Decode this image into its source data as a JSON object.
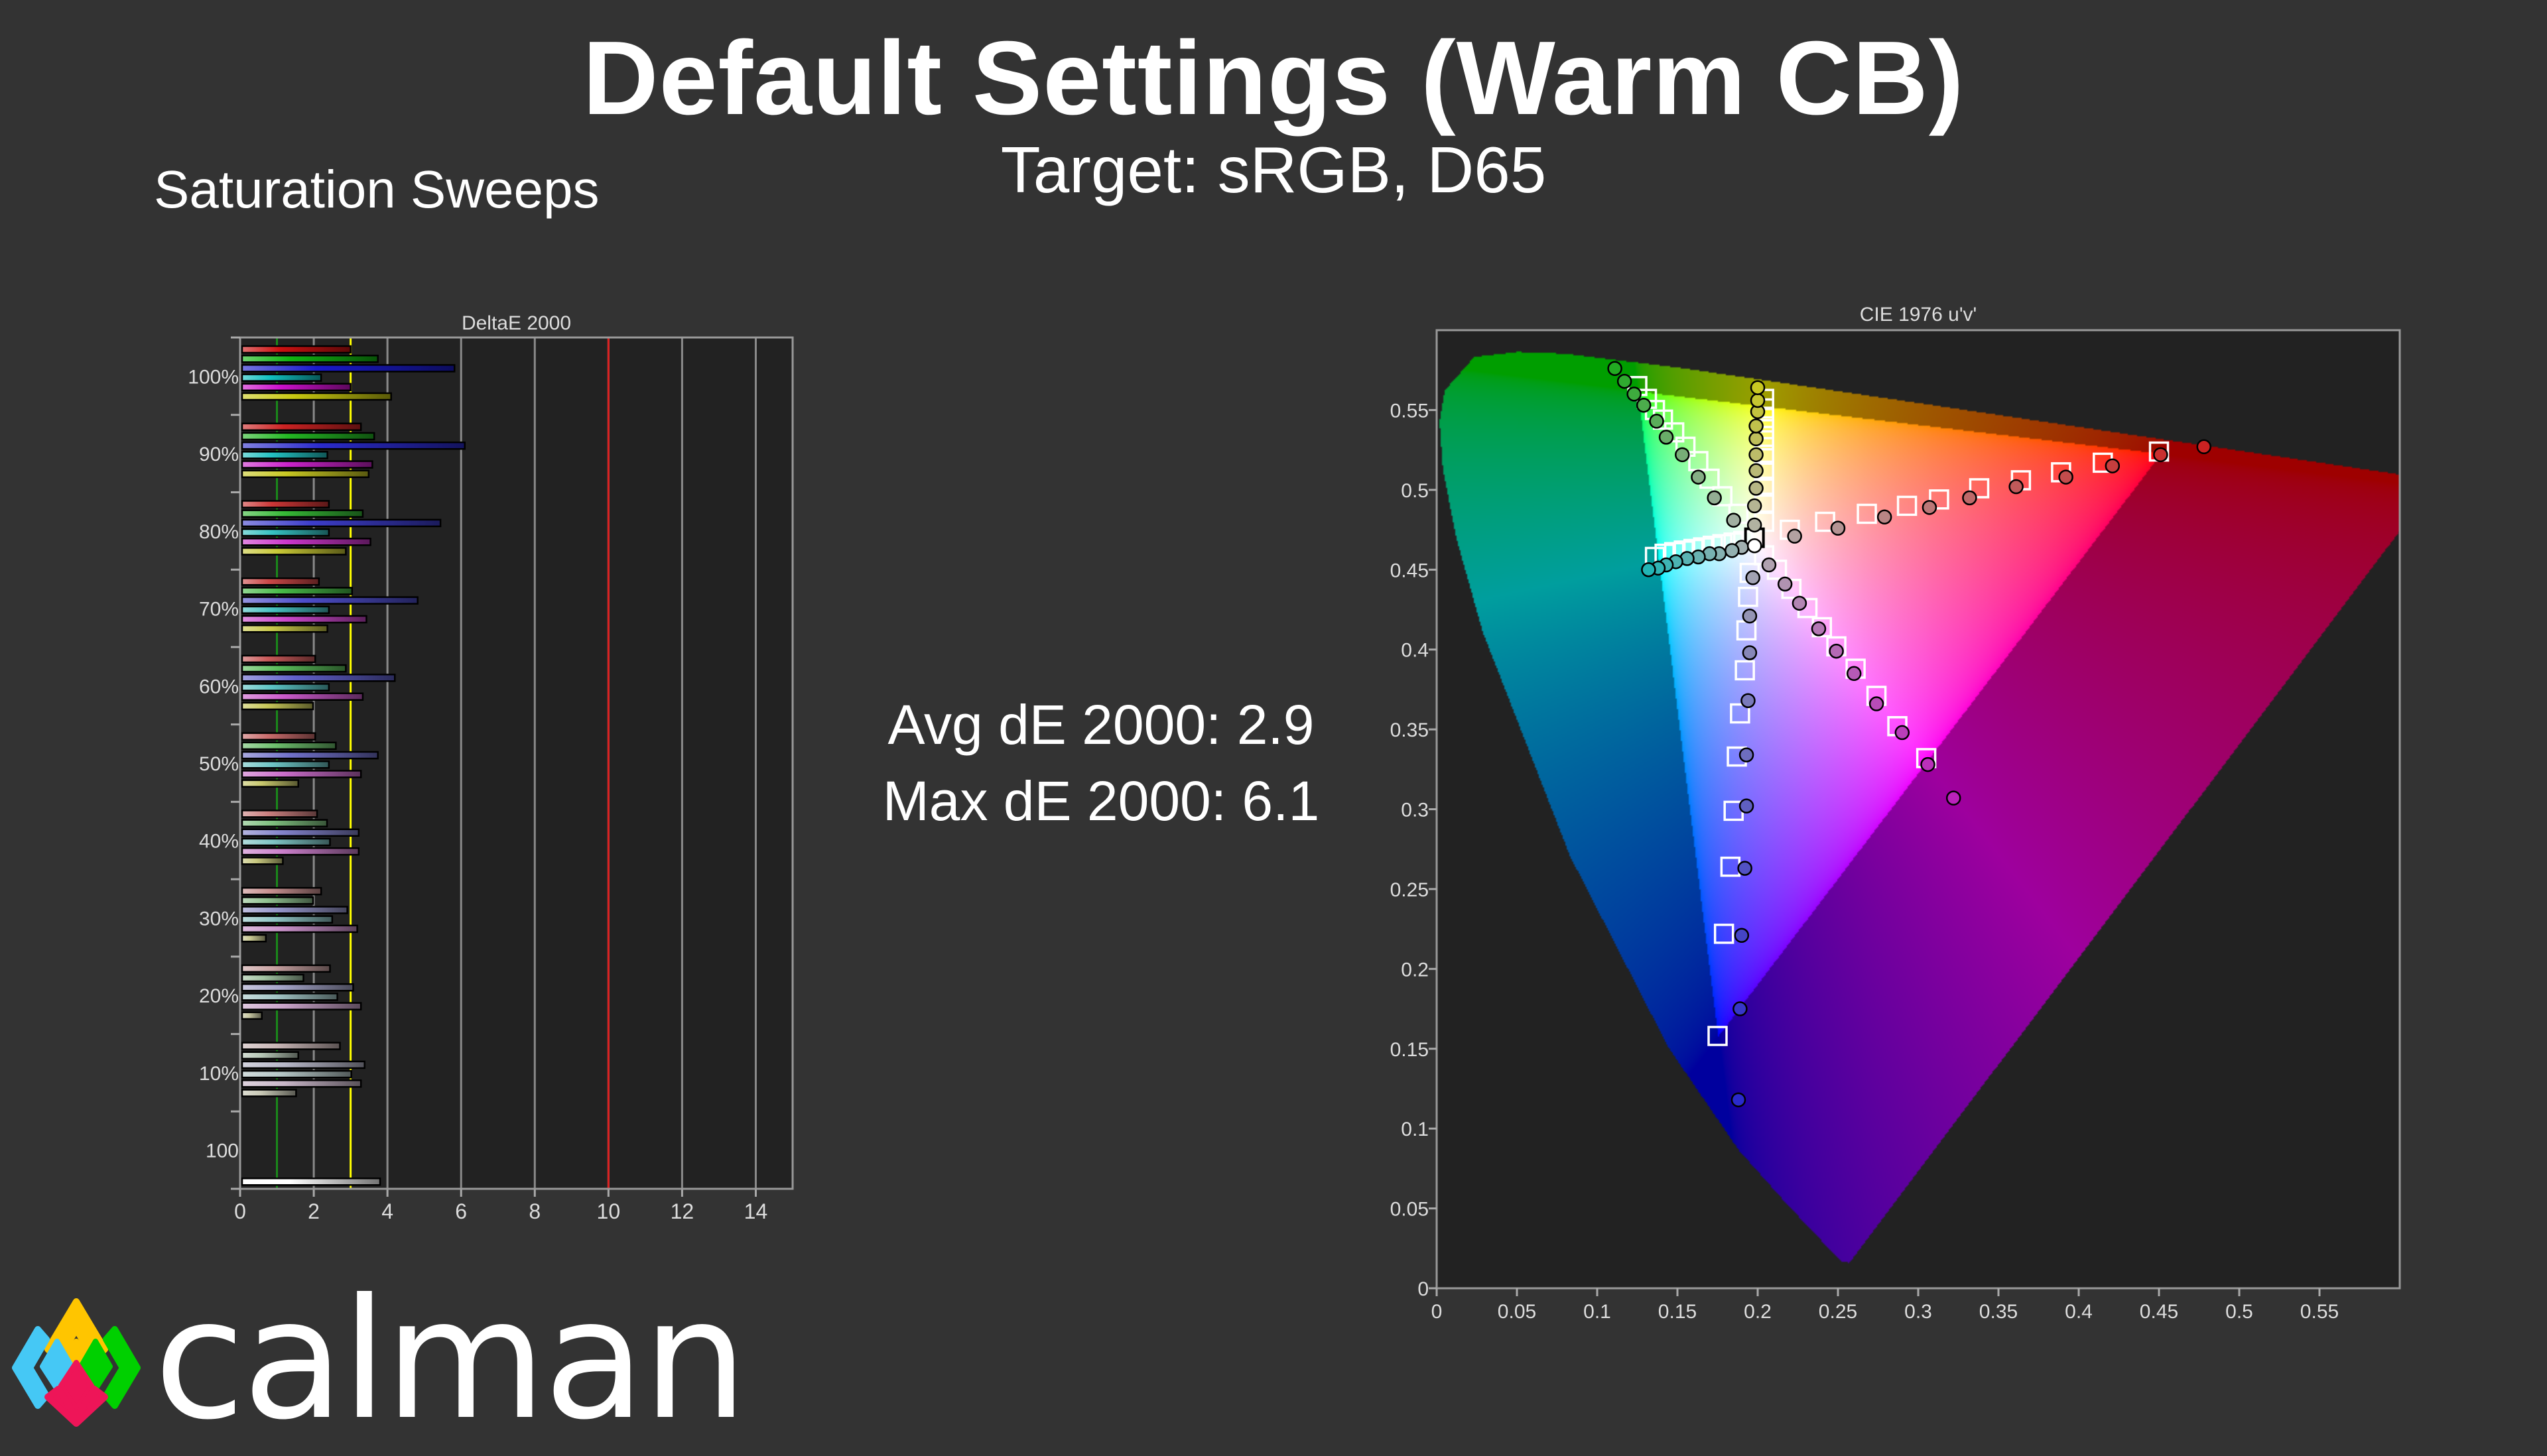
{
  "header": {
    "title": "Default Settings (Warm CB)",
    "subtitle": "Target: sRGB, D65",
    "section": "Saturation Sweeps"
  },
  "stats": {
    "avg": "Avg dE 2000: 2.9",
    "max": "Max dE 2000: 6.1"
  },
  "brand": {
    "name": "calman",
    "logo_colors": [
      "#ffc500",
      "#45c8f5",
      "#00d000",
      "#ee1558"
    ]
  },
  "chart_data": [
    {
      "type": "bar",
      "orientation": "horizontal",
      "title": "DeltaE 2000",
      "xlim": [
        0,
        15
      ],
      "x_ticks": [
        "0",
        "2",
        "4",
        "6",
        "8",
        "10",
        "12",
        "14"
      ],
      "grid": true,
      "reference_lines": [
        {
          "value": 1,
          "color": "#1a8a1a"
        },
        {
          "value": 3,
          "color": "#ffff00"
        },
        {
          "value": 10,
          "color": "#dd2020"
        }
      ],
      "series_colors": {
        "red": "#cc1111",
        "green": "#11b511",
        "blue": "#1a1acc",
        "cyan": "#11c0c0",
        "magenta": "#cc11cc",
        "yellow": "#c8c811",
        "white": "#ffffff"
      },
      "categories": [
        "100%",
        "90%",
        "80%",
        "70%",
        "60%",
        "50%",
        "40%",
        "30%",
        "20%",
        "10%",
        "100"
      ],
      "groups": [
        {
          "label": "100%",
          "saturation": 1.0,
          "values": {
            "red": 3.0,
            "green": 3.74,
            "blue": 5.82,
            "cyan": 2.2,
            "magenta": 3.0,
            "yellow": 4.1
          }
        },
        {
          "label": "90%",
          "saturation": 0.9,
          "values": {
            "red": 3.28,
            "green": 3.64,
            "blue": 6.1,
            "cyan": 2.37,
            "magenta": 3.59,
            "yellow": 3.49
          }
        },
        {
          "label": "80%",
          "saturation": 0.8,
          "values": {
            "red": 2.41,
            "green": 3.33,
            "blue": 5.44,
            "cyan": 2.41,
            "magenta": 3.54,
            "yellow": 2.87
          }
        },
        {
          "label": "70%",
          "saturation": 0.7,
          "values": {
            "red": 2.14,
            "green": 3.04,
            "blue": 4.82,
            "cyan": 2.41,
            "magenta": 3.43,
            "yellow": 2.37
          }
        },
        {
          "label": "60%",
          "saturation": 0.6,
          "values": {
            "red": 2.04,
            "green": 2.87,
            "blue": 4.2,
            "cyan": 2.41,
            "magenta": 3.33,
            "yellow": 1.98
          }
        },
        {
          "label": "50%",
          "saturation": 0.5,
          "values": {
            "red": 2.04,
            "green": 2.6,
            "blue": 3.74,
            "cyan": 2.41,
            "magenta": 3.28,
            "yellow": 1.58
          }
        },
        {
          "label": "40%",
          "saturation": 0.4,
          "values": {
            "red": 2.09,
            "green": 2.36,
            "blue": 3.22,
            "cyan": 2.44,
            "magenta": 3.22,
            "yellow": 1.16
          }
        },
        {
          "label": "30%",
          "saturation": 0.3,
          "values": {
            "red": 2.2,
            "green": 1.98,
            "blue": 2.91,
            "cyan": 2.5,
            "magenta": 3.18,
            "yellow": 0.7
          }
        },
        {
          "label": "20%",
          "saturation": 0.2,
          "values": {
            "red": 2.44,
            "green": 1.72,
            "blue": 3.07,
            "cyan": 2.64,
            "magenta": 3.28,
            "yellow": 0.59
          }
        },
        {
          "label": "10%",
          "saturation": 0.1,
          "values": {
            "red": 2.71,
            "green": 1.58,
            "blue": 3.38,
            "cyan": 3.02,
            "magenta": 3.28,
            "yellow": 1.52
          }
        },
        {
          "label": "100",
          "saturation": 0,
          "values": {
            "white": 3.8
          }
        }
      ]
    },
    {
      "type": "scatter",
      "title": "CIE 1976 u'v'",
      "xlim": [
        0,
        0.6
      ],
      "ylim": [
        0,
        0.6
      ],
      "x_ticks": [
        "0",
        "0.05",
        "0.1",
        "0.15",
        "0.2",
        "0.25",
        "0.3",
        "0.35",
        "0.4",
        "0.45",
        "0.5",
        "0.55"
      ],
      "y_ticks": [
        "0",
        "0.05",
        "0.1",
        "0.15",
        "0.2",
        "0.25",
        "0.3",
        "0.35",
        "0.4",
        "0.45",
        "0.5",
        "0.55"
      ],
      "gamut_triangle": [
        [
          0.451,
          0.523
        ],
        [
          0.125,
          0.562
        ],
        [
          0.175,
          0.158
        ]
      ],
      "white_point": {
        "target": [
          0.198,
          0.47
        ],
        "measured": [
          0.198,
          0.465
        ]
      },
      "series": [
        {
          "hue": "red",
          "color": "#cc2222",
          "targets": [
            [
              0.22,
              0.475
            ],
            [
              0.242,
              0.48
            ],
            [
              0.268,
              0.485
            ],
            [
              0.293,
              0.49
            ],
            [
              0.313,
              0.494
            ],
            [
              0.338,
              0.501
            ],
            [
              0.364,
              0.506
            ],
            [
              0.389,
              0.511
            ],
            [
              0.415,
              0.517
            ],
            [
              0.45,
              0.524
            ]
          ],
          "measured": [
            [
              0.223,
              0.471
            ],
            [
              0.25,
              0.476
            ],
            [
              0.279,
              0.483
            ],
            [
              0.307,
              0.489
            ],
            [
              0.332,
              0.495
            ],
            [
              0.361,
              0.502
            ],
            [
              0.392,
              0.508
            ],
            [
              0.421,
              0.515
            ],
            [
              0.451,
              0.522
            ],
            [
              0.478,
              0.527
            ]
          ]
        },
        {
          "hue": "green",
          "color": "#22aa22",
          "targets": [
            [
              0.188,
              0.485
            ],
            [
              0.178,
              0.496
            ],
            [
              0.17,
              0.507
            ],
            [
              0.163,
              0.518
            ],
            [
              0.155,
              0.527
            ],
            [
              0.148,
              0.536
            ],
            [
              0.141,
              0.544
            ],
            [
              0.136,
              0.55
            ],
            [
              0.131,
              0.557
            ],
            [
              0.125,
              0.565
            ]
          ],
          "measured": [
            [
              0.185,
              0.481
            ],
            [
              0.173,
              0.495
            ],
            [
              0.163,
              0.508
            ],
            [
              0.153,
              0.522
            ],
            [
              0.143,
              0.533
            ],
            [
              0.137,
              0.543
            ],
            [
              0.129,
              0.553
            ],
            [
              0.123,
              0.56
            ],
            [
              0.117,
              0.568
            ],
            [
              0.111,
              0.576
            ]
          ]
        },
        {
          "hue": "blue",
          "color": "#2a2acc",
          "targets": [
            [
              0.195,
              0.448
            ],
            [
              0.194,
              0.433
            ],
            [
              0.193,
              0.412
            ],
            [
              0.192,
              0.387
            ],
            [
              0.189,
              0.36
            ],
            [
              0.187,
              0.333
            ],
            [
              0.185,
              0.299
            ],
            [
              0.183,
              0.264
            ],
            [
              0.179,
              0.222
            ],
            [
              0.175,
              0.158
            ]
          ],
          "measured": [
            [
              0.197,
              0.445
            ],
            [
              0.195,
              0.421
            ],
            [
              0.195,
              0.398
            ],
            [
              0.194,
              0.368
            ],
            [
              0.193,
              0.334
            ],
            [
              0.193,
              0.302
            ],
            [
              0.192,
              0.263
            ],
            [
              0.19,
              0.221
            ],
            [
              0.189,
              0.175
            ],
            [
              0.188,
              0.118
            ]
          ]
        },
        {
          "hue": "cyan",
          "color": "#22b5b5",
          "targets": [
            [
              0.191,
              0.468
            ],
            [
              0.185,
              0.467
            ],
            [
              0.178,
              0.466
            ],
            [
              0.172,
              0.465
            ],
            [
              0.166,
              0.464
            ],
            [
              0.16,
              0.463
            ],
            [
              0.154,
              0.462
            ],
            [
              0.148,
              0.461
            ],
            [
              0.142,
              0.46
            ],
            [
              0.136,
              0.458
            ]
          ],
          "measured": [
            [
              0.19,
              0.464
            ],
            [
              0.184,
              0.462
            ],
            [
              0.176,
              0.46
            ],
            [
              0.17,
              0.46
            ],
            [
              0.163,
              0.458
            ],
            [
              0.156,
              0.457
            ],
            [
              0.149,
              0.455
            ],
            [
              0.143,
              0.453
            ],
            [
              0.138,
              0.451
            ],
            [
              0.132,
              0.45
            ]
          ]
        },
        {
          "hue": "magenta",
          "color": "#bb22bb",
          "targets": [
            [
              0.204,
              0.459
            ],
            [
              0.212,
              0.45
            ],
            [
              0.221,
              0.438
            ],
            [
              0.231,
              0.426
            ],
            [
              0.24,
              0.414
            ],
            [
              0.249,
              0.402
            ],
            [
              0.261,
              0.388
            ],
            [
              0.274,
              0.371
            ],
            [
              0.287,
              0.352
            ],
            [
              0.305,
              0.332
            ]
          ],
          "measured": [
            [
              0.207,
              0.453
            ],
            [
              0.217,
              0.441
            ],
            [
              0.226,
              0.429
            ],
            [
              0.238,
              0.413
            ],
            [
              0.249,
              0.399
            ],
            [
              0.26,
              0.385
            ],
            [
              0.274,
              0.366
            ],
            [
              0.29,
              0.348
            ],
            [
              0.306,
              0.328
            ],
            [
              0.322,
              0.307
            ]
          ]
        },
        {
          "hue": "yellow",
          "color": "#c8c822",
          "targets": [
            [
              0.204,
              0.48
            ],
            [
              0.204,
              0.492
            ],
            [
              0.204,
              0.502
            ],
            [
              0.204,
              0.512
            ],
            [
              0.204,
              0.522
            ],
            [
              0.204,
              0.531
            ],
            [
              0.204,
              0.538
            ],
            [
              0.204,
              0.545
            ],
            [
              0.204,
              0.551
            ],
            [
              0.204,
              0.557
            ]
          ],
          "measured": [
            [
              0.198,
              0.478
            ],
            [
              0.198,
              0.49
            ],
            [
              0.199,
              0.501
            ],
            [
              0.199,
              0.512
            ],
            [
              0.199,
              0.522
            ],
            [
              0.199,
              0.532
            ],
            [
              0.199,
              0.54
            ],
            [
              0.2,
              0.549
            ],
            [
              0.2,
              0.556
            ],
            [
              0.2,
              0.564
            ]
          ]
        }
      ]
    }
  ]
}
